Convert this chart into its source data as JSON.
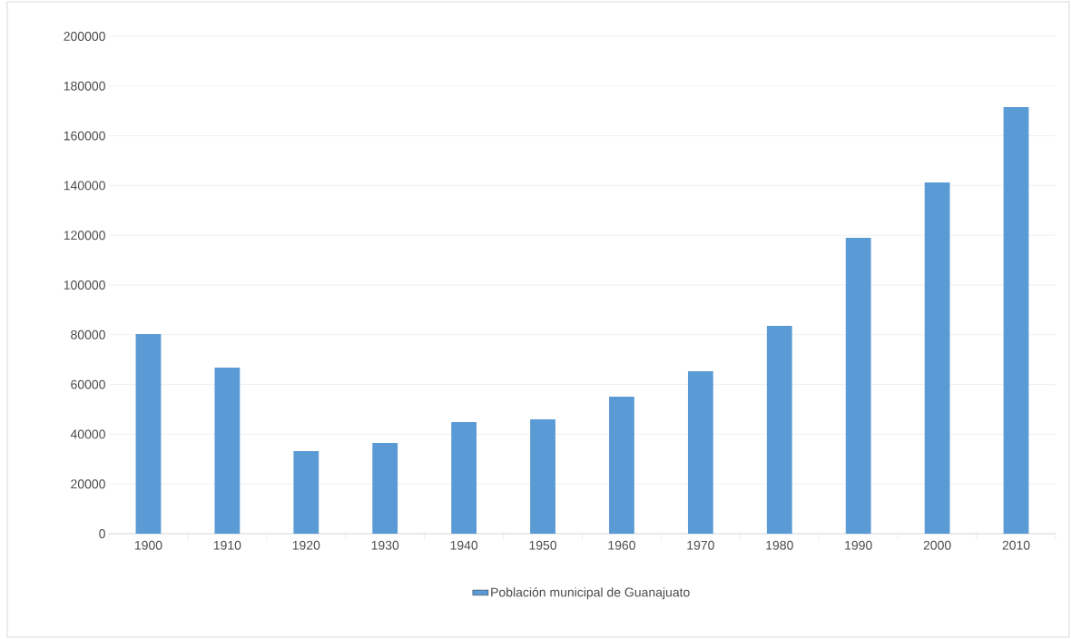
{
  "chart_data": {
    "type": "bar",
    "categories": [
      "1900",
      "1910",
      "1920",
      "1930",
      "1940",
      "1950",
      "1960",
      "1970",
      "1980",
      "1990",
      "2000",
      "2010"
    ],
    "series": [
      {
        "name": "Población municipal de Guanajuato",
        "color": "#5b9bd5",
        "values": [
          80300,
          66800,
          33200,
          36500,
          44900,
          46000,
          55100,
          65300,
          83600,
          119000,
          141200,
          171500
        ]
      }
    ],
    "ylim": [
      0,
      200000
    ],
    "yticks": [
      0,
      20000,
      40000,
      60000,
      80000,
      100000,
      120000,
      140000,
      160000,
      180000,
      200000
    ],
    "grid": "y",
    "legend": "bottom"
  }
}
